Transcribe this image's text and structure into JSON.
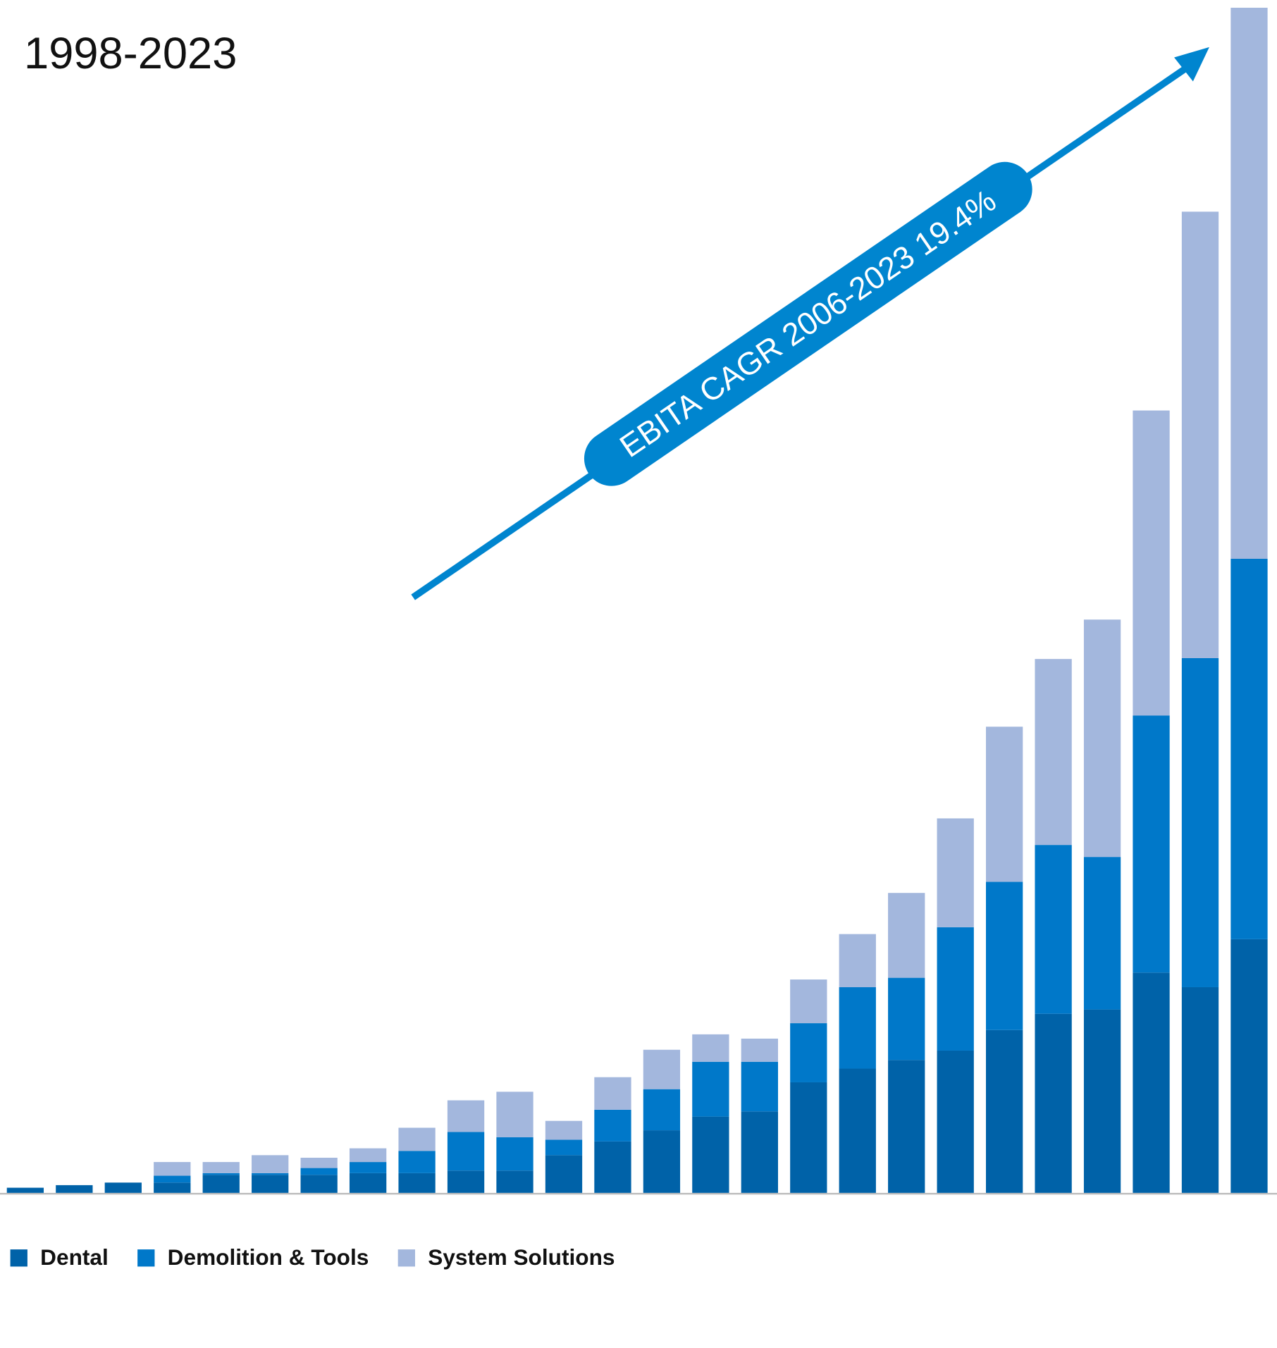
{
  "chart_data": {
    "type": "stacked_bar",
    "title": "1998-2023",
    "annotation": "EBITA CAGR 2006-2023 19.4%",
    "ylim": [
      0,
      1383
    ],
    "legend": "bottom-left",
    "series": [
      {
        "name": "Dental",
        "color": "#0062a8",
        "values": [
          6,
          9,
          12,
          12,
          21,
          21,
          21,
          23,
          23,
          26,
          26,
          44,
          60,
          73,
          89,
          95,
          129,
          145,
          155,
          166,
          190,
          209,
          214,
          257,
          240,
          296
        ]
      },
      {
        "name": "Demolition & Tools",
        "color": "#0078c9",
        "values": [
          0,
          0,
          0,
          8,
          2,
          2,
          8,
          13,
          26,
          45,
          39,
          18,
          37,
          48,
          64,
          58,
          69,
          95,
          96,
          144,
          173,
          197,
          178,
          300,
          384,
          444
        ]
      },
      {
        "name": "System Solutions",
        "color": "#a3b7dd",
        "values": [
          0,
          0,
          0,
          16,
          13,
          21,
          12,
          16,
          27,
          37,
          53,
          22,
          38,
          46,
          32,
          27,
          51,
          62,
          99,
          127,
          181,
          217,
          277,
          356,
          521,
          643
        ]
      }
    ]
  }
}
